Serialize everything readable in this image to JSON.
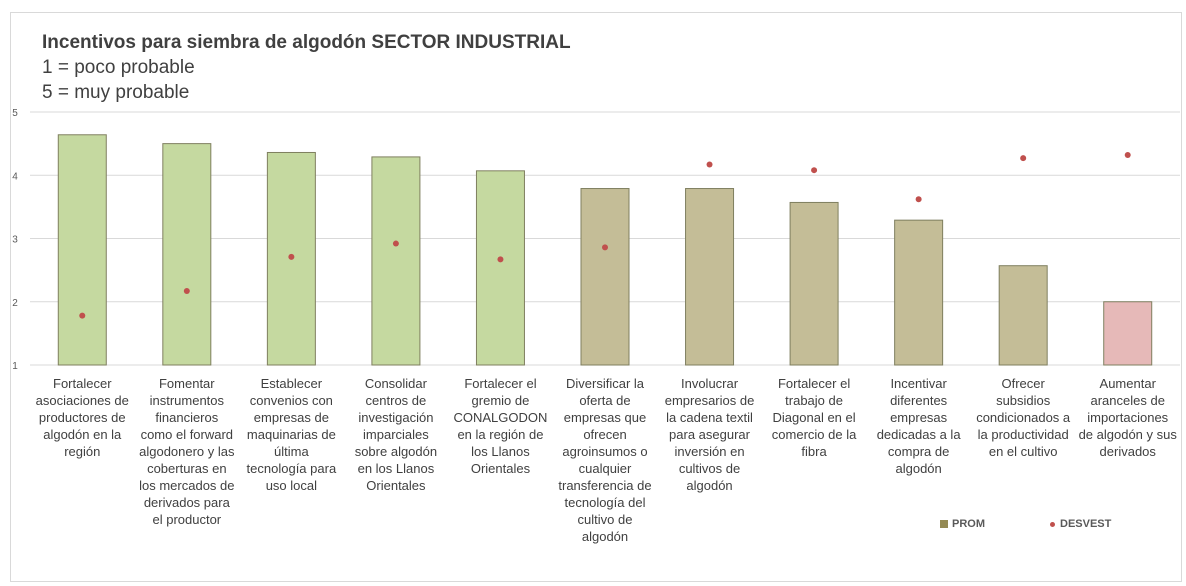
{
  "chart_data": {
    "type": "bar",
    "title": "Incentivos para siembra de algodón SECTOR INDUSTRIAL",
    "subtitle_lines": [
      "1 = poco probable",
      "5 = muy probable"
    ],
    "xlabel": "",
    "ylabel": "",
    "ylim": [
      1,
      5
    ],
    "yticks": [
      1,
      2,
      3,
      4,
      5
    ],
    "grid": true,
    "legend_position": "bottom-right",
    "categories": [
      "Fortalecer asociaciones de productores de algodón en la región",
      "Fomentar instrumentos financieros como el forward algodonero y las coberturas en los mercados de derivados para el productor",
      "Establecer convenios con empresas de maquinarias de última tecnología para uso local",
      "Consolidar centros de investigación imparciales sobre algodón en los Llanos Orientales",
      "Fortalecer el gremio de CONALGODON en la región de los Llanos Orientales",
      "Diversificar la oferta de empresas que ofrecen agroinsumos o cualquier transferencia de tecnología del cultivo de algodón",
      "Involucrar empresarios de la cadena textil para asegurar inversión en cultivos de algodón",
      "Fortalecer el trabajo de Diagonal en el comercio de la fibra",
      "Incentivar diferentes empresas dedicadas a la compra de algodón",
      "Ofrecer subsidios condicionados a la productividad en el cultivo",
      "Aumentar aranceles de importaciones de algodón y sus derivados"
    ],
    "category_lines": [
      [
        "Fortalecer",
        "asociaciones de",
        "productores de",
        "algodón en la",
        "región"
      ],
      [
        "Fomentar",
        "instrumentos",
        "financieros",
        "como el forward",
        "algodonero y las",
        "coberturas en",
        "los mercados de",
        "derivados para",
        "el productor"
      ],
      [
        "Establecer",
        "convenios con",
        "empresas de",
        "maquinarias de",
        "última",
        "tecnología para",
        "uso local"
      ],
      [
        "Consolidar",
        "centros de",
        "investigación",
        "imparciales",
        "sobre algodón",
        "en los Llanos",
        "Orientales"
      ],
      [
        "Fortalecer el",
        "gremio de",
        "CONALGODON",
        "en la región de",
        "los Llanos",
        "Orientales"
      ],
      [
        "Diversificar la",
        "oferta de",
        "empresas que",
        "ofrecen",
        "agroinsumos o",
        "cualquier",
        "transferencia de",
        "tecnología del",
        "cultivo de",
        "algodón"
      ],
      [
        "Involucrar",
        "empresarios de",
        "la cadena textil",
        "para asegurar",
        "inversión en",
        "cultivos de",
        "algodón"
      ],
      [
        "Fortalecer el",
        "trabajo de",
        "Diagonal en el",
        "comercio de la",
        "fibra"
      ],
      [
        "Incentivar",
        "diferentes",
        "empresas",
        "dedicadas a la",
        "compra de",
        "algodón"
      ],
      [
        "Ofrecer",
        "subsidios",
        "condicionados a",
        "la productividad",
        "en el cultivo"
      ],
      [
        "Aumentar",
        "aranceles de",
        "importaciones",
        "de algodón y sus",
        "derivados"
      ]
    ],
    "series": [
      {
        "name": "PROM",
        "type": "bar",
        "values": [
          4.64,
          4.5,
          4.36,
          4.29,
          4.07,
          3.79,
          3.79,
          3.57,
          3.29,
          2.57,
          2.0
        ],
        "colors": [
          "#c5d9a0",
          "#c5d9a0",
          "#c5d9a0",
          "#c5d9a0",
          "#c5d9a0",
          "#c4bd97",
          "#c4bd97",
          "#c4bd97",
          "#c4bd97",
          "#c4bd97",
          "#e6b9b8"
        ]
      },
      {
        "name": "DESVEST",
        "type": "scatter",
        "values": [
          1.78,
          2.17,
          2.71,
          2.92,
          2.67,
          2.86,
          4.17,
          4.08,
          3.62,
          4.27,
          4.32
        ],
        "color": "#c0504d"
      }
    ],
    "legend_square_color": "#948a54",
    "bar_outline_color": "#7f7f5f"
  }
}
